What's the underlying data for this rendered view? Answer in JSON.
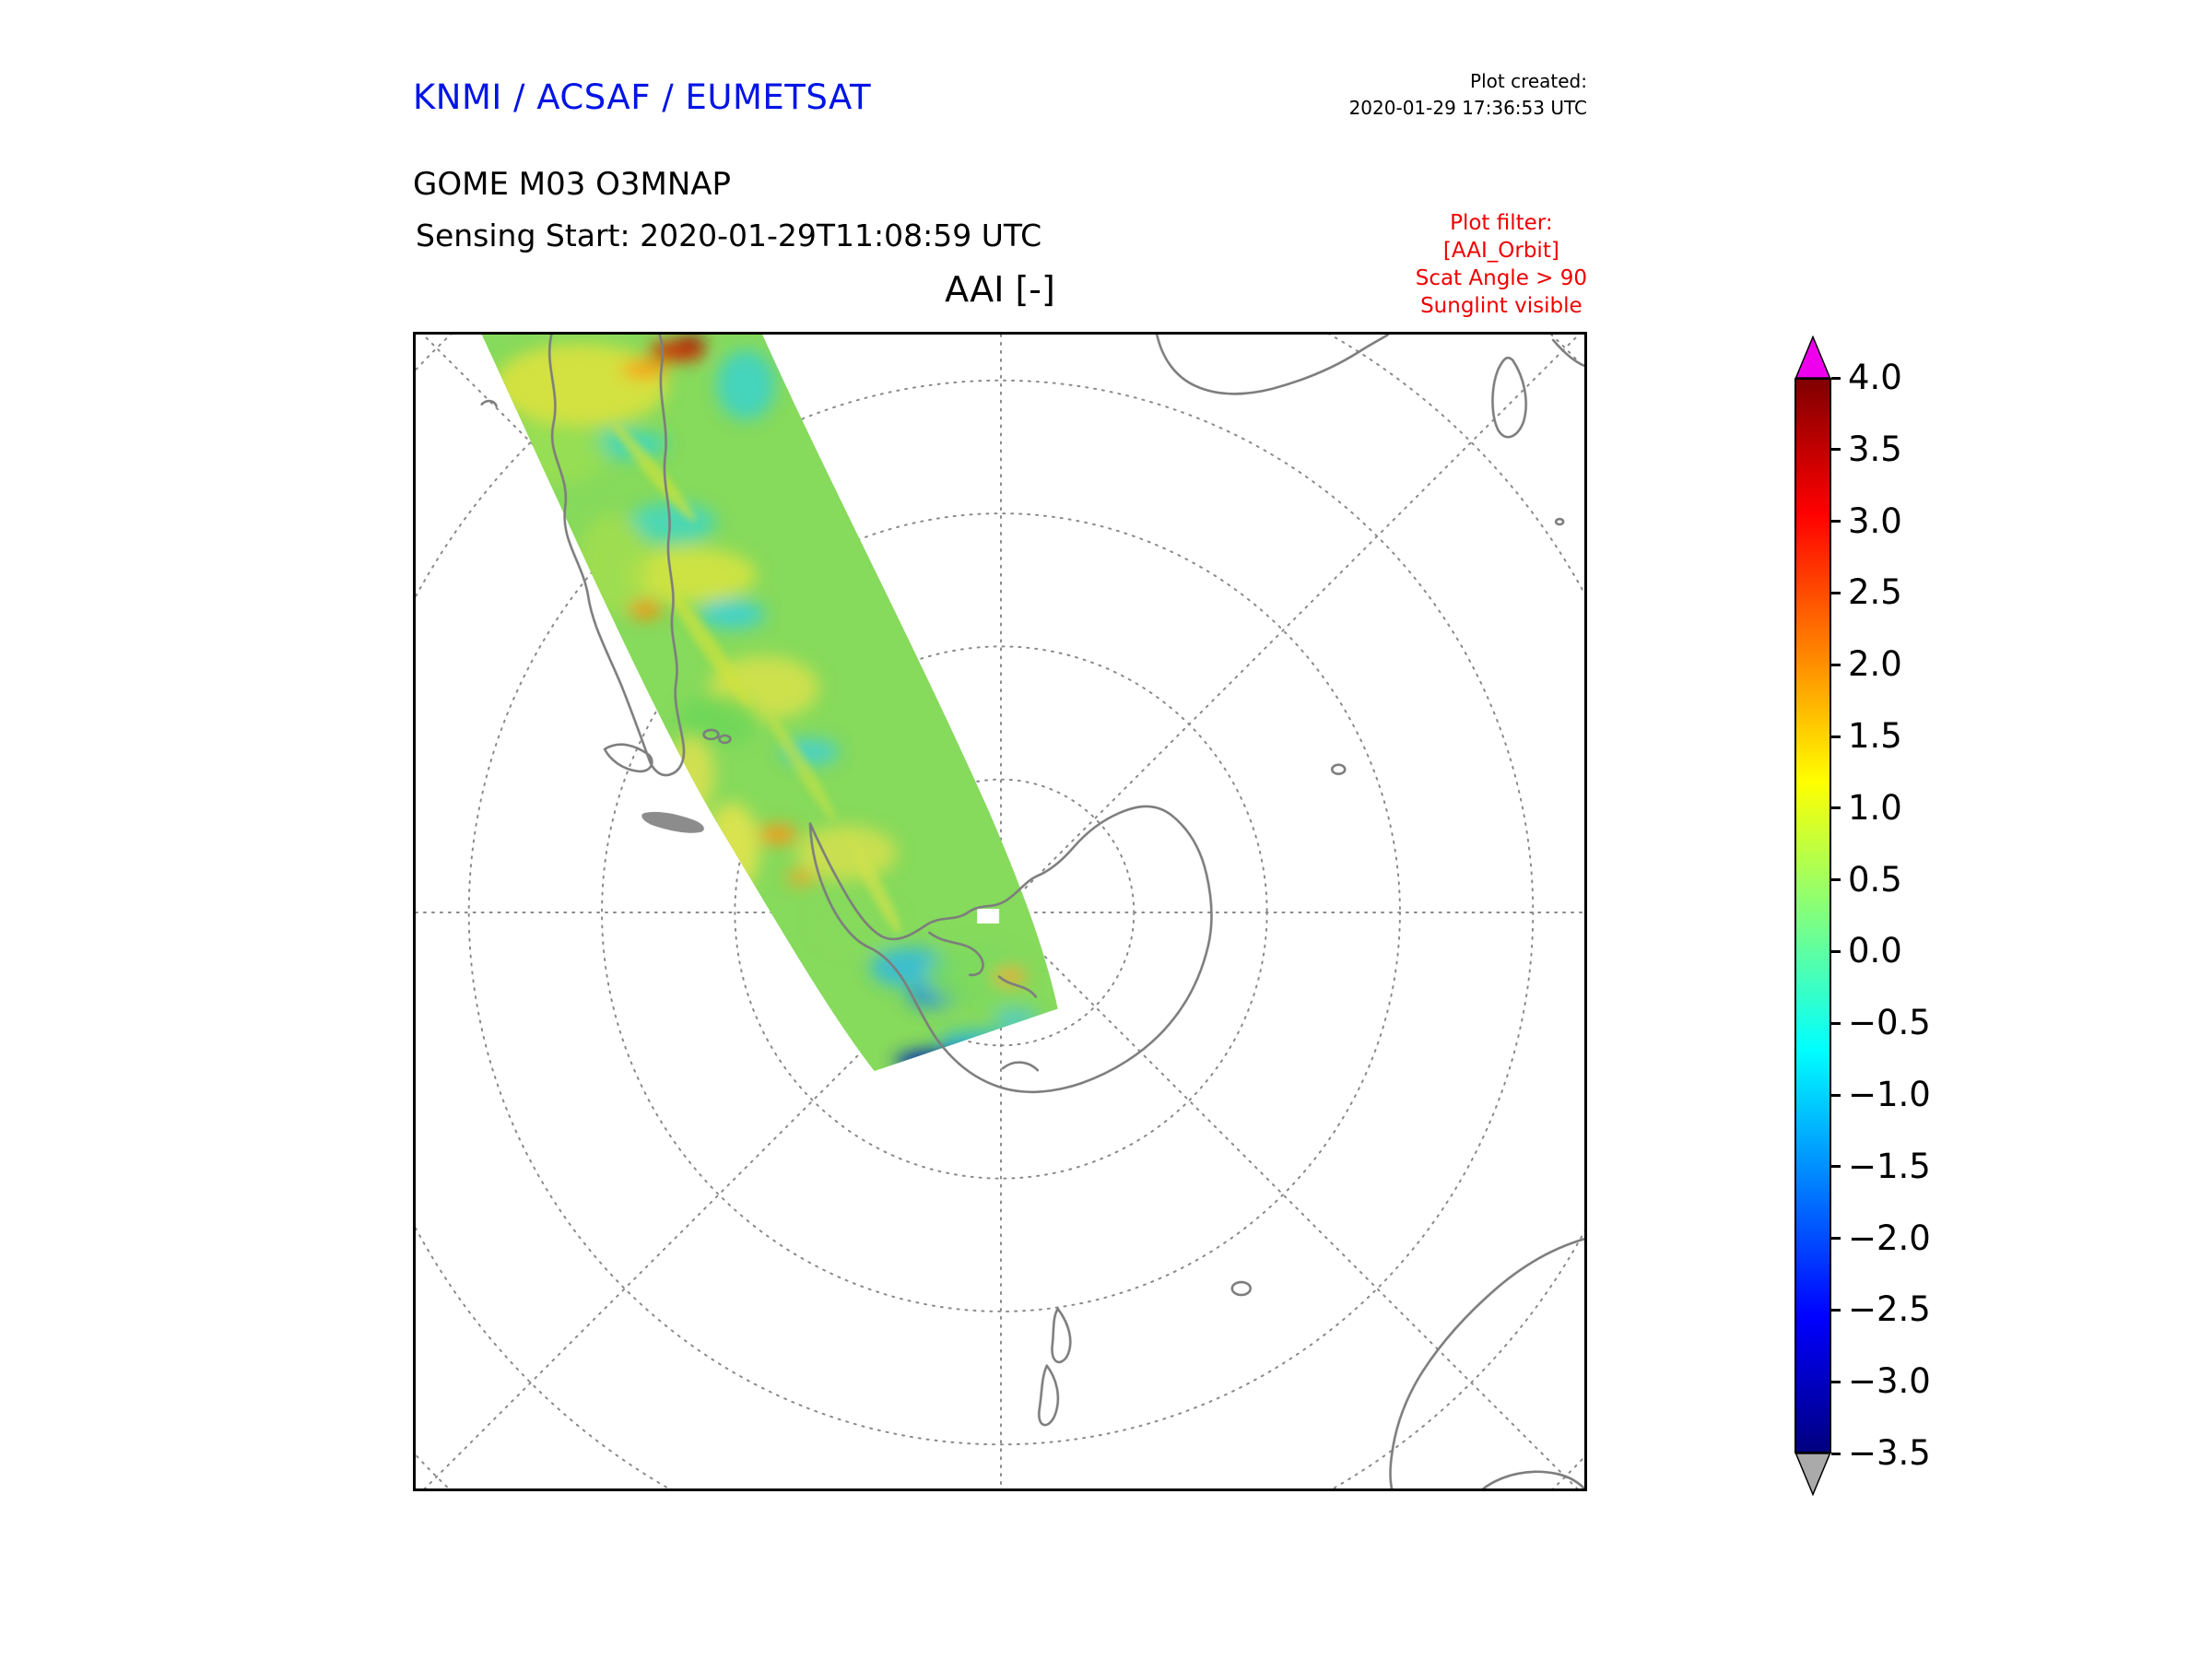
{
  "header": {
    "org": "KNMI / ACSAF / EUMETSAT",
    "created_label": "Plot created:",
    "created_value": "2020-01-29 17:36:53 UTC",
    "product": "GOME M03 O3MNAP",
    "sensing": "Sensing Start: 2020-01-29T11:08:59 UTC"
  },
  "filter": {
    "line1": "Plot filter:",
    "line2": "[AAI_Orbit]",
    "line3": "Scat Angle > 90",
    "line4": "Sunglint visible"
  },
  "map": {
    "title": "AAI [-]"
  },
  "colorbar": {
    "unit": "AAI [-]",
    "max": 4.0,
    "min": -3.5,
    "ticks": [
      "4.0",
      "3.5",
      "3.0",
      "2.5",
      "2.0",
      "1.5",
      "1.0",
      "0.5",
      "0.0",
      "−0.5",
      "−1.0",
      "−1.5",
      "−2.0",
      "−2.5",
      "−3.0",
      "−3.5"
    ],
    "over_color": "#ee00ee",
    "under_color": "#aaaaaa",
    "gradient": [
      "#800000",
      "#ff0000",
      "#ffff00",
      "#00ffff",
      "#0000ff",
      "#000080"
    ]
  },
  "colors": {
    "org_text": "#0014e6",
    "filter_text": "#ee0000",
    "coastline": "#7d7d7d",
    "graticule": "#8a8a8a"
  }
}
